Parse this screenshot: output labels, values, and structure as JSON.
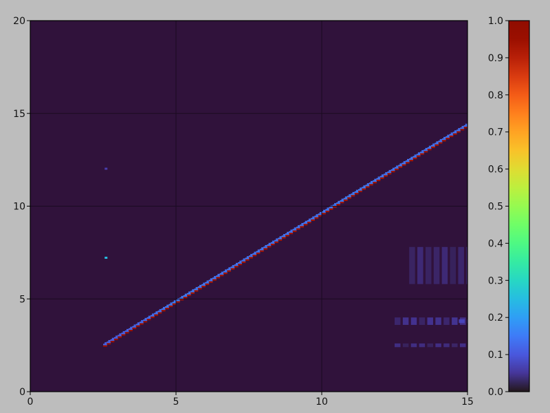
{
  "chart_data": {
    "type": "heatmap",
    "title": "",
    "xlabel": "",
    "ylabel": "",
    "xlim": [
      0,
      15
    ],
    "ylim": [
      0,
      20
    ],
    "x_ticks": [
      "0",
      "5",
      "10",
      "15"
    ],
    "y_ticks": [
      "0",
      "5",
      "10",
      "15",
      "20"
    ],
    "grid": true,
    "colormap": "turbo",
    "background_value": 0.0,
    "colorbar": {
      "range": [
        0.0,
        1.0
      ],
      "ticks": [
        "0.0",
        "0.1",
        "0.2",
        "0.3",
        "0.4",
        "0.5",
        "0.6",
        "0.7",
        "0.8",
        "0.9",
        "1.0"
      ],
      "placement": "right"
    },
    "ridge": [
      {
        "x": 2.5,
        "y": 2.5,
        "peak": 0.95,
        "side": 0.12
      },
      {
        "x": 3.0,
        "y": 2.98,
        "peak": 0.95,
        "side": 0.12
      },
      {
        "x": 4.0,
        "y": 3.93,
        "peak": 0.95,
        "side": 0.14
      },
      {
        "x": 5.0,
        "y": 4.88,
        "peak": 0.93,
        "side": 0.16
      },
      {
        "x": 6.0,
        "y": 5.83,
        "peak": 0.93,
        "side": 0.15
      },
      {
        "x": 7.0,
        "y": 6.78,
        "peak": 0.93,
        "side": 0.15
      },
      {
        "x": 8.0,
        "y": 7.74,
        "peak": 0.93,
        "side": 0.15
      },
      {
        "x": 9.0,
        "y": 8.69,
        "peak": 0.93,
        "side": 0.15
      },
      {
        "x": 10.0,
        "y": 9.64,
        "peak": 0.93,
        "side": 0.15
      },
      {
        "x": 11.0,
        "y": 10.6,
        "peak": 0.93,
        "side": 0.16
      },
      {
        "x": 12.0,
        "y": 11.55,
        "peak": 0.93,
        "side": 0.15
      },
      {
        "x": 13.0,
        "y": 12.5,
        "peak": 0.93,
        "side": 0.15
      },
      {
        "x": 14.0,
        "y": 13.45,
        "peak": 0.93,
        "side": 0.15
      },
      {
        "x": 15.0,
        "y": 14.4,
        "peak": 0.95,
        "side": 0.14
      }
    ],
    "isolated_points": [
      {
        "x": 2.6,
        "y": 7.2,
        "value": 0.25
      },
      {
        "x": 2.6,
        "y": 12.0,
        "value": 0.06
      }
    ],
    "faint_regions": [
      {
        "x": [
          12.5,
          15
        ],
        "y": [
          3.6,
          4.0
        ],
        "value": 0.06
      },
      {
        "x": [
          12.5,
          15
        ],
        "y": [
          2.4,
          2.6
        ],
        "value": 0.05
      },
      {
        "x": [
          13.0,
          15
        ],
        "y": [
          5.8,
          7.8
        ],
        "value": 0.04
      },
      {
        "x": [
          14.7,
          15
        ],
        "y": [
          3.7,
          3.9
        ],
        "value": 0.12
      }
    ]
  }
}
